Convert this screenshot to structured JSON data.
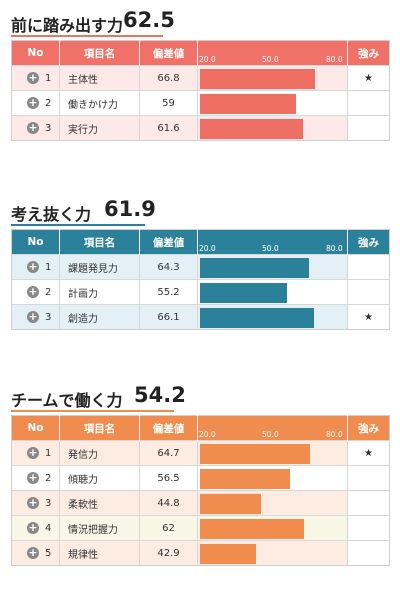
{
  "columns": {
    "no": "No",
    "item": "項目名",
    "score": "偏差値",
    "strength": "強み"
  },
  "axis": {
    "min": 20,
    "max": 80,
    "ticks": [
      "20.0",
      "50.0",
      "80.0"
    ]
  },
  "sections": [
    {
      "title": "前に踏み出す力",
      "score": "62.5",
      "header_color": "#f07167",
      "bar_color": "#ef6e64",
      "row_color_odd": "#fde9e7",
      "row_color_even": "#ffffff",
      "rows": [
        {
          "no": "1",
          "item": "主体性",
          "value": 66.8,
          "value_text": "66.8",
          "star": "★"
        },
        {
          "no": "2",
          "item": "働きかけ力",
          "value": 59,
          "value_text": "59",
          "star": ""
        },
        {
          "no": "3",
          "item": "実行力",
          "value": 61.6,
          "value_text": "61.6",
          "star": ""
        }
      ]
    },
    {
      "title": "考え抜く力",
      "score": "61.9",
      "header_color": "#2b8199",
      "bar_color": "#2b8199",
      "row_color_odd": "#e3f1f6",
      "row_color_even": "#ffffff",
      "rows": [
        {
          "no": "1",
          "item": "課題発見力",
          "value": 64.3,
          "value_text": "64.3",
          "star": ""
        },
        {
          "no": "2",
          "item": "計画力",
          "value": 55.2,
          "value_text": "55.2",
          "star": ""
        },
        {
          "no": "3",
          "item": "創造力",
          "value": 66.1,
          "value_text": "66.1",
          "star": "★"
        }
      ]
    },
    {
      "title": "チームで働く力",
      "score": "54.2",
      "header_color": "#f08c4e",
      "bar_color": "#f08c4e",
      "row_color_odd": "#fdece2",
      "row_color_even": "#ffffff",
      "row_color_alt": "#f6f7e6",
      "rows": [
        {
          "no": "1",
          "item": "発信力",
          "value": 64.7,
          "value_text": "64.7",
          "star": "★"
        },
        {
          "no": "2",
          "item": "傾聴力",
          "value": 56.5,
          "value_text": "56.5",
          "star": ""
        },
        {
          "no": "3",
          "item": "柔軟性",
          "value": 44.8,
          "value_text": "44.8",
          "star": ""
        },
        {
          "no": "4",
          "item": "情況把握力",
          "value": 62,
          "value_text": "62",
          "star": ""
        },
        {
          "no": "5",
          "item": "規律性",
          "value": 42.9,
          "value_text": "42.9",
          "star": ""
        }
      ]
    }
  ]
}
